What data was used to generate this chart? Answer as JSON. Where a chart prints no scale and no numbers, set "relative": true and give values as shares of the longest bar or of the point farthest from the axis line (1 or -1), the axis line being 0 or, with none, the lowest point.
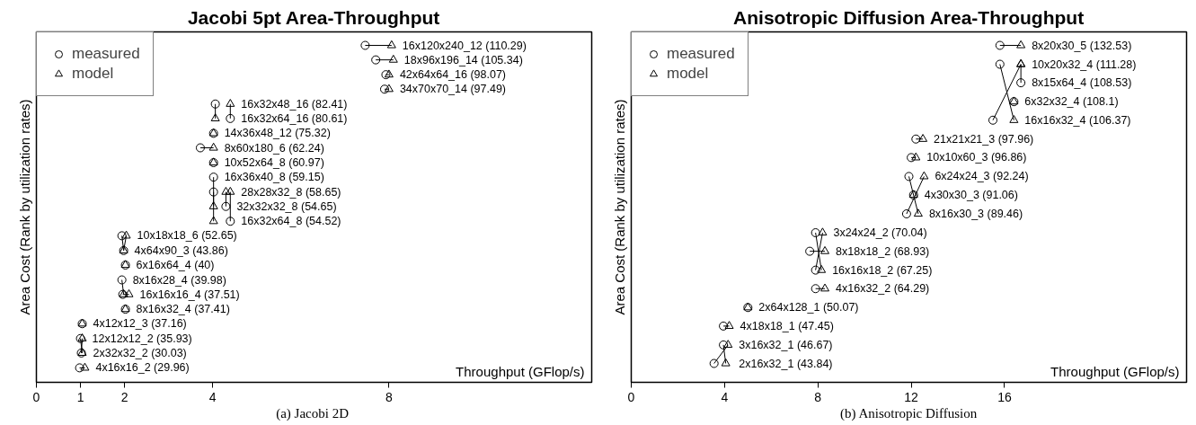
{
  "chart_data": [
    {
      "type": "scatter",
      "title": "Jacobi 5pt Area-Throughput",
      "xlabel": "Throughput (GFlop/s)",
      "ylabel": "Area Cost (Rank by utilization rates)",
      "relative": true,
      "xlim": [
        0,
        12.6
      ],
      "xticks": [
        0,
        1,
        2,
        4,
        8
      ],
      "grid": false,
      "legend": "top left",
      "series": [
        {
          "name": "measured",
          "marker": "circle",
          "color": "#000000",
          "x": [
            7.46,
            7.7,
            7.93,
            7.9,
            4.06,
            4.4,
            4.02,
            3.72,
            4.02,
            4.02,
            4.02,
            4.3,
            4.4,
            1.94,
            1.98,
            2.02,
            1.94,
            1.96,
            2.02,
            1.04,
            1.0,
            1.02,
            0.98
          ],
          "values": [
            1,
            0.957,
            0.913,
            0.87,
            0.826,
            0.783,
            0.739,
            0.696,
            0.652,
            0.609,
            0.565,
            0.522,
            0.478,
            0.435,
            0.391,
            0.348,
            0.304,
            0.261,
            0.217,
            0.174,
            0.13,
            0.087,
            0.043
          ]
        },
        {
          "name": "model",
          "marker": "triangle",
          "color": "#000000",
          "x": [
            8.06,
            8.1,
            8.0,
            8.0,
            4.06,
            4.4,
            4.02,
            4.02,
            4.02,
            4.02,
            4.02,
            4.3,
            4.4,
            1.98,
            2.04,
            2.02,
            1.98,
            2.1,
            2.02,
            1.04,
            1.04,
            1.04,
            1.1
          ],
          "values": [
            1,
            0.957,
            0.913,
            0.87,
            0.783,
            0.826,
            0.739,
            0.696,
            0.652,
            0.522,
            0.478,
            0.565,
            0.565,
            0.391,
            0.435,
            0.348,
            0.261,
            0.261,
            0.217,
            0.174,
            0.087,
            0.13,
            0.043
          ]
        }
      ],
      "annotations": [
        {
          "text": "16x120x240_12 (110.29)",
          "x": 8.06,
          "y": 1
        },
        {
          "text": "18x96x196_14 (105.34)",
          "x": 8.1,
          "y": 0.957
        },
        {
          "text": "42x64x64_16 (98.07)",
          "x": 8.0,
          "y": 0.913
        },
        {
          "text": "34x70x70_14 (97.49)",
          "x": 8.0,
          "y": 0.87
        },
        {
          "text": "16x32x48_16 (82.41)",
          "x": 4.4,
          "y": 0.826
        },
        {
          "text": "16x32x64_16 (80.61)",
          "x": 4.4,
          "y": 0.783
        },
        {
          "text": "14x36x48_12 (75.32)",
          "x": 4.02,
          "y": 0.739
        },
        {
          "text": "8x60x180_6 (62.24)",
          "x": 4.02,
          "y": 0.696
        },
        {
          "text": "10x52x64_8 (60.97)",
          "x": 4.02,
          "y": 0.652
        },
        {
          "text": "16x36x40_8 (59.15)",
          "x": 4.02,
          "y": 0.609
        },
        {
          "text": "28x28x32_8 (58.65)",
          "x": 4.4,
          "y": 0.565
        },
        {
          "text": "32x32x32_8 (54.65)",
          "x": 4.3,
          "y": 0.522
        },
        {
          "text": "16x32x64_8 (54.52)",
          "x": 4.4,
          "y": 0.478
        },
        {
          "text": "10x18x18_6 (52.65)",
          "x": 2.04,
          "y": 0.435
        },
        {
          "text": "4x64x90_3 (43.86)",
          "x": 1.98,
          "y": 0.391
        },
        {
          "text": "6x16x64_4 (40)",
          "x": 2.02,
          "y": 0.348
        },
        {
          "text": "8x16x28_4 (39.98)",
          "x": 1.94,
          "y": 0.304
        },
        {
          "text": "16x16x16_4 (37.51)",
          "x": 2.1,
          "y": 0.261
        },
        {
          "text": "8x16x32_4 (37.41)",
          "x": 2.02,
          "y": 0.217
        },
        {
          "text": "4x12x12_3 (37.16)",
          "x": 1.04,
          "y": 0.174
        },
        {
          "text": "12x12x12_2 (35.93)",
          "x": 1.02,
          "y": 0.13
        },
        {
          "text": "2x32x32_2 (30.03)",
          "x": 1.04,
          "y": 0.087
        },
        {
          "text": "4x16x16_2 (29.96)",
          "x": 1.1,
          "y": 0.043
        },
        "(a)  Jacobi 2D"
      ]
    },
    {
      "type": "scatter",
      "title": "Anisotropic Diffusion Area-Throughput",
      "xlabel": "Throughput (GFlop/s)",
      "ylabel": "Area Cost (Rank by utilization rates)",
      "relative": true,
      "xlim": [
        0,
        23.8
      ],
      "xticks": [
        0,
        4,
        8,
        12,
        16
      ],
      "grid": false,
      "legend": "top left",
      "series": [
        {
          "name": "measured",
          "marker": "circle",
          "color": "#000000",
          "x": [
            15.8,
            15.8,
            16.7,
            16.4,
            15.5,
            12.2,
            12.0,
            11.9,
            12.1,
            11.8,
            7.9,
            7.65,
            7.9,
            7.9,
            5.0,
            3.95,
            3.95,
            3.55
          ],
          "values": [
            1,
            0.944,
            0.889,
            0.833,
            0.778,
            0.722,
            0.667,
            0.611,
            0.556,
            0.5,
            0.444,
            0.389,
            0.333,
            0.278,
            0.222,
            0.167,
            0.111,
            0.056
          ]
        },
        {
          "name": "model",
          "marker": "triangle",
          "color": "#000000",
          "x": [
            16.7,
            16.4,
            16.7,
            16.4,
            16.7,
            12.5,
            12.2,
            12.3,
            12.1,
            12.55,
            8.15,
            8.3,
            8.2,
            8.3,
            5.0,
            4.2,
            4.05,
            4.15
          ],
          "values": [
            1,
            0.778,
            0.944,
            0.833,
            0.944,
            0.722,
            0.667,
            0.5,
            0.556,
            0.611,
            0.333,
            0.389,
            0.444,
            0.278,
            0.222,
            0.167,
            0.056,
            0.111
          ]
        }
      ],
      "annotations": [
        {
          "text": "8x20x30_5 (132.53)",
          "x": 16.7,
          "y": 1
        },
        {
          "text": "10x20x32_4 (111.28)",
          "x": 16.7,
          "y": 0.944
        },
        {
          "text": "8x15x64_4 (108.53)",
          "x": 16.7,
          "y": 0.889
        },
        {
          "text": "6x32x32_4 (108.1)",
          "x": 16.4,
          "y": 0.833
        },
        {
          "text": "16x16x32_4 (106.37)",
          "x": 16.4,
          "y": 0.778
        },
        {
          "text": "21x21x21_3 (97.96)",
          "x": 12.5,
          "y": 0.722
        },
        {
          "text": "10x10x60_3 (96.86)",
          "x": 12.2,
          "y": 0.667
        },
        {
          "text": "6x24x24_3 (92.24)",
          "x": 12.55,
          "y": 0.611
        },
        {
          "text": "4x30x30_3 (91.06)",
          "x": 12.1,
          "y": 0.556
        },
        {
          "text": "8x16x30_3 (89.46)",
          "x": 12.3,
          "y": 0.5
        },
        {
          "text": "3x24x24_2 (70.04)",
          "x": 8.2,
          "y": 0.444
        },
        {
          "text": "8x18x18_2 (68.93)",
          "x": 8.3,
          "y": 0.389
        },
        {
          "text": "16x16x18_2 (67.25)",
          "x": 8.15,
          "y": 0.333
        },
        {
          "text": "4x16x32_2 (64.29)",
          "x": 8.3,
          "y": 0.278
        },
        {
          "text": "2x64x128_1 (50.07)",
          "x": 5.0,
          "y": 0.222
        },
        {
          "text": "4x18x18_1 (47.45)",
          "x": 4.2,
          "y": 0.167
        },
        {
          "text": "3x16x32_1 (46.67)",
          "x": 4.15,
          "y": 0.111
        },
        {
          "text": "2x16x32_1 (43.84)",
          "x": 4.15,
          "y": 0.056
        },
        "(b) Anisotropic Diffusion"
      ]
    }
  ]
}
